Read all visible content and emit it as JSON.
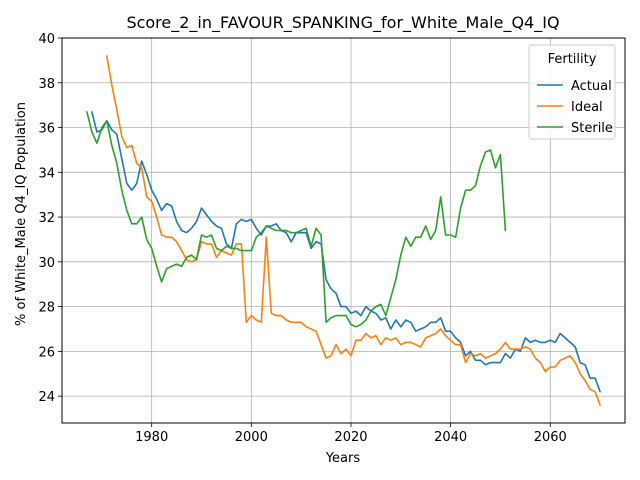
{
  "chart_data": {
    "type": "line",
    "title": "Score_2_in_FAVOUR_SPANKING_for_White_Male_Q4_IQ",
    "xlabel": "Years",
    "ylabel": "% of White_Male Q4_IQ Population",
    "xlim": [
      1962,
      2075
    ],
    "ylim": [
      22.8,
      40.0
    ],
    "xticks": [
      1980,
      2000,
      2020,
      2040,
      2060
    ],
    "yticks": [
      24,
      26,
      28,
      30,
      32,
      34,
      36,
      38,
      40
    ],
    "grid": true,
    "legend": {
      "title": "Fertility",
      "placement": "top-right"
    },
    "series": [
      {
        "name": "Actual",
        "color": "#1f77b4",
        "x": [
          1968,
          1969,
          1970,
          1971,
          1972,
          1973,
          1974,
          1975,
          1976,
          1977,
          1978,
          1979,
          1980,
          1981,
          1982,
          1983,
          1984,
          1985,
          1986,
          1987,
          1988,
          1989,
          1990,
          1991,
          1992,
          1993,
          1994,
          1995,
          1996,
          1997,
          1998,
          1999,
          2000,
          2001,
          2002,
          2003,
          2004,
          2005,
          2006,
          2007,
          2008,
          2009,
          2010,
          2011,
          2012,
          2013,
          2014,
          2015,
          2016,
          2017,
          2018,
          2019,
          2020,
          2021,
          2022,
          2023,
          2024,
          2025,
          2026,
          2027,
          2028,
          2029,
          2030,
          2031,
          2032,
          2033,
          2034,
          2035,
          2036,
          2037,
          2038,
          2039,
          2040,
          2041,
          2042,
          2043,
          2044,
          2045,
          2046,
          2047,
          2048,
          2049,
          2050,
          2051,
          2052,
          2053,
          2054,
          2055,
          2056,
          2057,
          2058,
          2059,
          2060,
          2061,
          2062,
          2063,
          2064,
          2065,
          2066,
          2067,
          2068,
          2069,
          2070
        ],
        "values": [
          36.7,
          35.8,
          35.9,
          36.3,
          35.9,
          35.7,
          34.6,
          33.5,
          33.2,
          33.5,
          34.5,
          33.9,
          33.2,
          32.8,
          32.3,
          32.6,
          32.5,
          31.8,
          31.4,
          31.3,
          31.5,
          31.8,
          32.4,
          32.1,
          31.8,
          31.6,
          31.5,
          30.8,
          30.6,
          31.7,
          31.9,
          31.8,
          31.9,
          31.5,
          31.2,
          31.6,
          31.6,
          31.7,
          31.4,
          31.3,
          30.9,
          31.3,
          31.3,
          31.3,
          30.6,
          30.9,
          30.8,
          29.2,
          28.8,
          28.6,
          28.0,
          28.0,
          27.7,
          27.8,
          27.6,
          28.0,
          27.8,
          27.7,
          27.4,
          27.5,
          27.0,
          27.4,
          27.1,
          27.4,
          27.3,
          26.9,
          27.0,
          27.1,
          27.3,
          27.3,
          27.5,
          26.9,
          26.9,
          26.6,
          26.4,
          25.8,
          26.0,
          25.6,
          25.6,
          25.4,
          25.5,
          25.5,
          25.5,
          25.9,
          25.7,
          26.1,
          26.0,
          26.6,
          26.4,
          26.5,
          26.4,
          26.4,
          26.5,
          26.4,
          26.8,
          26.6,
          26.4,
          26.2,
          25.5,
          25.4,
          24.8,
          24.8,
          24.2
        ]
      },
      {
        "name": "Ideal",
        "color": "#ff7f0e",
        "x": [
          1971,
          1972,
          1973,
          1974,
          1975,
          1976,
          1977,
          1978,
          1979,
          1980,
          1981,
          1982,
          1983,
          1984,
          1985,
          1986,
          1987,
          1988,
          1989,
          1990,
          1991,
          1992,
          1993,
          1994,
          1995,
          1996,
          1997,
          1998,
          1999,
          2000,
          2001,
          2002,
          2003,
          2004,
          2005,
          2006,
          2007,
          2008,
          2009,
          2010,
          2011,
          2012,
          2013,
          2014,
          2015,
          2016,
          2017,
          2018,
          2019,
          2020,
          2021,
          2022,
          2023,
          2024,
          2025,
          2026,
          2027,
          2028,
          2029,
          2030,
          2031,
          2032,
          2033,
          2034,
          2035,
          2036,
          2037,
          2038,
          2039,
          2040,
          2041,
          2042,
          2043,
          2044,
          2045,
          2046,
          2047,
          2048,
          2049,
          2050,
          2051,
          2052,
          2053,
          2054,
          2055,
          2056,
          2057,
          2058,
          2059,
          2060,
          2061,
          2062,
          2063,
          2064,
          2065,
          2066,
          2067,
          2068,
          2069,
          2070
        ],
        "values": [
          39.2,
          37.9,
          36.8,
          35.6,
          35.1,
          35.2,
          34.4,
          34.2,
          32.9,
          32.7,
          32.0,
          31.2,
          31.1,
          31.1,
          30.9,
          30.5,
          30.1,
          30.0,
          30.1,
          30.9,
          30.8,
          30.8,
          30.2,
          30.5,
          30.4,
          30.3,
          30.8,
          30.8,
          27.3,
          27.6,
          27.4,
          27.3,
          31.1,
          27.7,
          27.6,
          27.6,
          27.4,
          27.3,
          27.3,
          27.3,
          27.1,
          27.0,
          26.9,
          26.3,
          25.7,
          25.8,
          26.3,
          25.9,
          26.1,
          25.8,
          26.5,
          26.5,
          26.8,
          26.6,
          26.7,
          26.3,
          26.6,
          26.5,
          26.6,
          26.3,
          26.4,
          26.4,
          26.3,
          26.2,
          26.6,
          26.7,
          26.8,
          27.0,
          26.7,
          26.5,
          26.3,
          26.3,
          25.5,
          25.9,
          25.8,
          25.9,
          25.7,
          25.8,
          25.9,
          26.1,
          26.4,
          26.1,
          26.1,
          26.1,
          26.2,
          26.1,
          25.7,
          25.5,
          25.1,
          25.3,
          25.3,
          25.6,
          25.7,
          25.8,
          25.5,
          25.0,
          24.7,
          24.3,
          24.2,
          23.6
        ]
      },
      {
        "name": "Sterile",
        "color": "#2ca02c",
        "x": [
          1967,
          1968,
          1969,
          1970,
          1971,
          1972,
          1973,
          1974,
          1975,
          1976,
          1977,
          1978,
          1979,
          1980,
          1981,
          1982,
          1983,
          1984,
          1985,
          1986,
          1987,
          1988,
          1989,
          1990,
          1991,
          1992,
          1993,
          1994,
          1995,
          1996,
          1997,
          1998,
          1999,
          2000,
          2001,
          2002,
          2003,
          2004,
          2005,
          2006,
          2007,
          2008,
          2009,
          2010,
          2011,
          2012,
          2013,
          2014,
          2015,
          2016,
          2017,
          2018,
          2019,
          2020,
          2021,
          2022,
          2023,
          2024,
          2025,
          2026,
          2027,
          2028,
          2029,
          2030,
          2031,
          2032,
          2033,
          2034,
          2035,
          2036,
          2037,
          2038,
          2039,
          2040,
          2041,
          2042,
          2043,
          2044,
          2045,
          2046,
          2047,
          2048,
          2049,
          2050,
          2051
        ],
        "values": [
          36.7,
          35.8,
          35.3,
          36.0,
          36.3,
          35.2,
          34.4,
          33.2,
          32.3,
          31.7,
          31.7,
          32.0,
          31.0,
          30.6,
          29.8,
          29.1,
          29.7,
          29.8,
          29.9,
          29.8,
          30.2,
          30.3,
          30.1,
          31.2,
          31.1,
          31.2,
          30.6,
          30.5,
          30.7,
          30.6,
          30.6,
          30.5,
          30.5,
          30.5,
          31.1,
          31.3,
          31.6,
          31.5,
          31.4,
          31.4,
          31.4,
          31.3,
          31.3,
          31.4,
          31.5,
          30.7,
          31.5,
          31.2,
          27.3,
          27.5,
          27.6,
          27.6,
          27.6,
          27.2,
          27.1,
          27.2,
          27.4,
          27.8,
          28.0,
          28.1,
          27.6,
          28.4,
          29.2,
          30.3,
          31.1,
          30.7,
          31.1,
          31.1,
          31.6,
          31.0,
          31.4,
          32.9,
          31.2,
          31.2,
          31.1,
          32.4,
          33.2,
          33.2,
          33.4,
          34.3,
          34.9,
          35.0,
          34.2,
          34.8,
          31.4
        ]
      }
    ]
  }
}
